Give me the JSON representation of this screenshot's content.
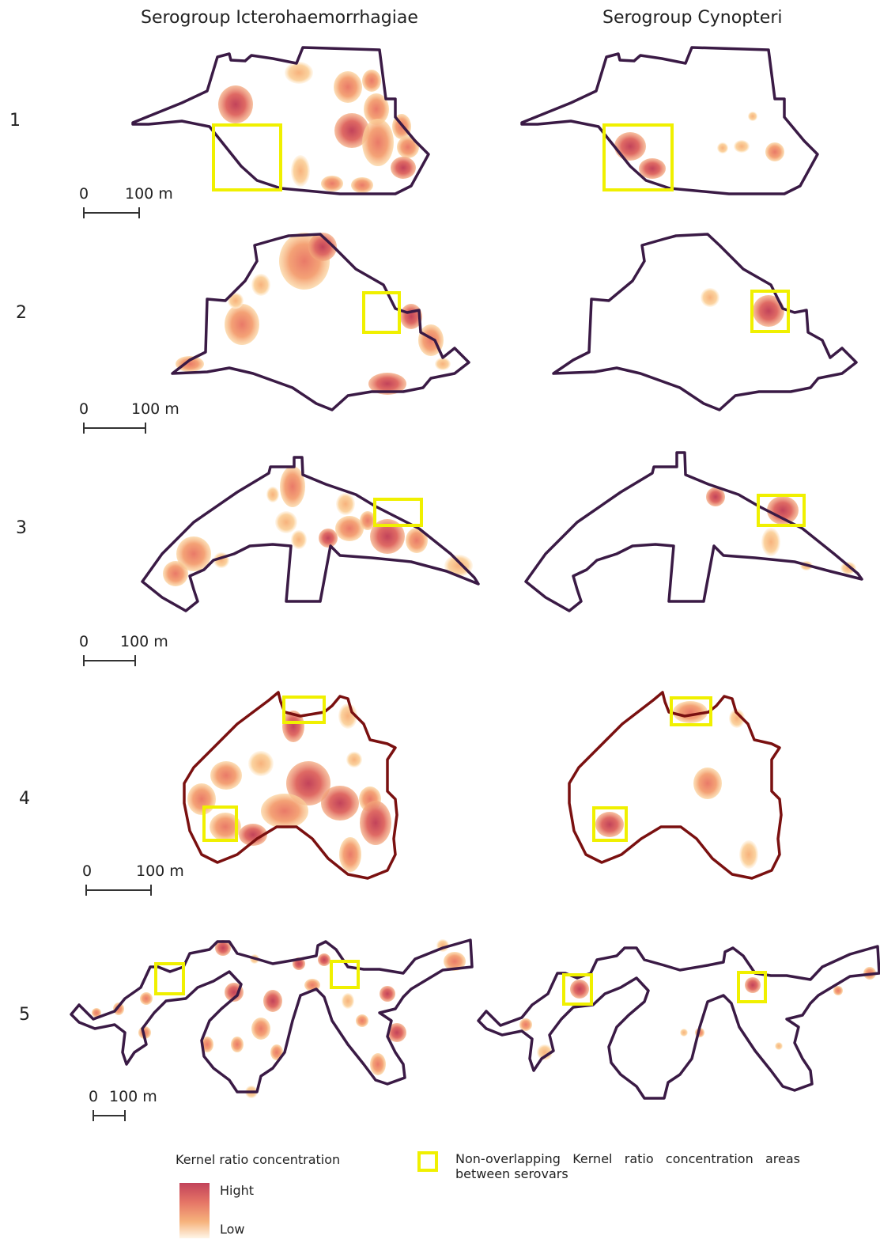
{
  "columns": {
    "left_title": "Serogroup Icterohaemorrhagiae",
    "right_title": "Serogroup Cynopteri"
  },
  "rows": [
    {
      "number": "1",
      "scale_zero": "0",
      "scale_label": "100 m"
    },
    {
      "number": "2",
      "scale_zero": "0",
      "scale_label": "100 m"
    },
    {
      "number": "3",
      "scale_zero": "0",
      "scale_label": "100 m"
    },
    {
      "number": "4",
      "scale_zero": "0",
      "scale_label": "100 m"
    },
    {
      "number": "5",
      "scale_zero": "0",
      "scale_label": "100 m"
    }
  ],
  "legend": {
    "kernel_title": "Kernel ratio concentration",
    "high_label": "Hight",
    "low_label": "Low",
    "box_label": "Non-overlapping Kernel ratio concentration areas between serovars"
  },
  "colors": {
    "boundary": "#3a1a45",
    "boundary_row4": "#7a1010",
    "highlight_box": "#f0f000",
    "kernel_high": "#c2435a",
    "kernel_mid": "#e57566",
    "kernel_low": "#f6b37c"
  }
}
